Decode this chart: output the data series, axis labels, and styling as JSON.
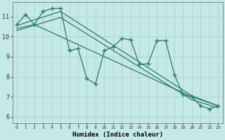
{
  "xlabel": "Humidex (Indice chaleur)",
  "bg_color": "#c5e8e8",
  "grid_color": "#b0d5d5",
  "line_color": "#2a7a6a",
  "xlim": [
    -0.5,
    23.5
  ],
  "ylim": [
    5.7,
    11.7
  ],
  "yticks": [
    6,
    7,
    8,
    9,
    10,
    11
  ],
  "xticks": [
    0,
    1,
    2,
    3,
    4,
    5,
    6,
    7,
    8,
    9,
    10,
    11,
    12,
    13,
    14,
    15,
    16,
    17,
    18,
    19,
    20,
    21,
    22,
    23
  ],
  "zigzag_x": [
    0,
    1,
    2,
    3,
    4,
    5,
    6,
    7,
    8,
    9,
    10,
    11,
    12,
    13,
    14,
    15,
    16,
    17,
    18,
    19,
    20,
    21,
    22,
    23
  ],
  "zigzag_y": [
    10.6,
    11.1,
    10.6,
    11.25,
    11.4,
    11.4,
    9.3,
    9.4,
    7.9,
    7.65,
    9.3,
    9.5,
    9.9,
    9.85,
    8.6,
    8.65,
    9.8,
    9.8,
    8.1,
    7.1,
    7.0,
    6.55,
    6.4,
    6.55
  ],
  "line1_x": [
    0,
    5,
    20,
    23
  ],
  "line1_y": [
    10.55,
    11.25,
    7.05,
    6.55
  ],
  "line2_x": [
    0,
    2,
    20,
    23
  ],
  "line2_y": [
    10.4,
    10.6,
    7.0,
    6.55
  ],
  "line3_x": [
    0,
    5,
    20,
    23
  ],
  "line3_y": [
    10.3,
    10.95,
    6.85,
    6.45
  ]
}
